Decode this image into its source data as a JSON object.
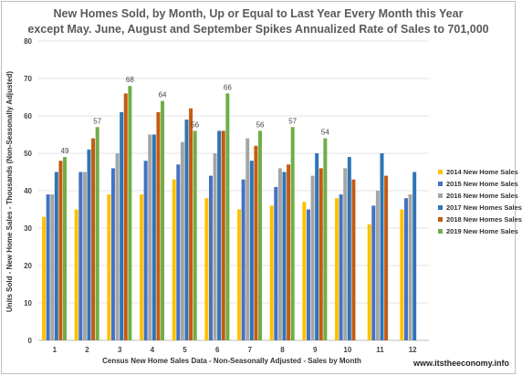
{
  "chart_data": {
    "type": "bar",
    "title_lines": [
      "New Homes Sold, by Month, Up or Equal to Last Year  Every Month this Year",
      "except May.  June, August and September  Spikes Annualized Rate of Sales to 701,000"
    ],
    "xlabel": "Census New Home Sales Data - Non-Seasonally Adjusted - Sales by Month",
    "ylabel": "Units Sold - New Home Sales - Thousands (Non-Seasonally Adjusted)",
    "ylim": [
      0,
      80
    ],
    "yticks": [
      0,
      10,
      20,
      30,
      40,
      50,
      60,
      70,
      80
    ],
    "grid": true,
    "legend_position": "right",
    "categories": [
      "1",
      "2",
      "3",
      "4",
      "5",
      "6",
      "7",
      "8",
      "9",
      "10",
      "11",
      "12"
    ],
    "series": [
      {
        "name": "2014 New Home Sales",
        "color": "#FFC000",
        "values": [
          33,
          35,
          39,
          39,
          43,
          38,
          35,
          36,
          37,
          38,
          31,
          35
        ]
      },
      {
        "name": "2015 New Home Sales",
        "color": "#4472C4",
        "values": [
          39,
          45,
          46,
          48,
          47,
          44,
          43,
          41,
          35,
          39,
          36,
          38
        ]
      },
      {
        "name": "2016 New Home Sales",
        "color": "#A5A5A5",
        "values": [
          39,
          45,
          50,
          55,
          53,
          50,
          54,
          46,
          44,
          46,
          40,
          39
        ]
      },
      {
        "name": "2017 New Homes Sales",
        "color": "#2E75B6",
        "values": [
          45,
          51,
          61,
          55,
          59,
          56,
          48,
          45,
          50,
          49,
          50,
          45
        ]
      },
      {
        "name": "2018 New Homes Sales",
        "color": "#C55A11",
        "values": [
          48,
          54,
          66,
          61,
          62,
          56,
          52,
          47,
          46,
          43,
          44,
          null
        ]
      },
      {
        "name": "2019 New Home Sales",
        "color": "#70AD47",
        "values": [
          49,
          57,
          68,
          64,
          56,
          66,
          56,
          57,
          54,
          null,
          null,
          null
        ]
      }
    ],
    "data_labels": {
      "series": "2019 New Home Sales",
      "values": [
        49,
        57,
        68,
        64,
        56,
        66,
        56,
        57,
        54
      ]
    }
  },
  "watermark": "www.itstheeconomy.info"
}
